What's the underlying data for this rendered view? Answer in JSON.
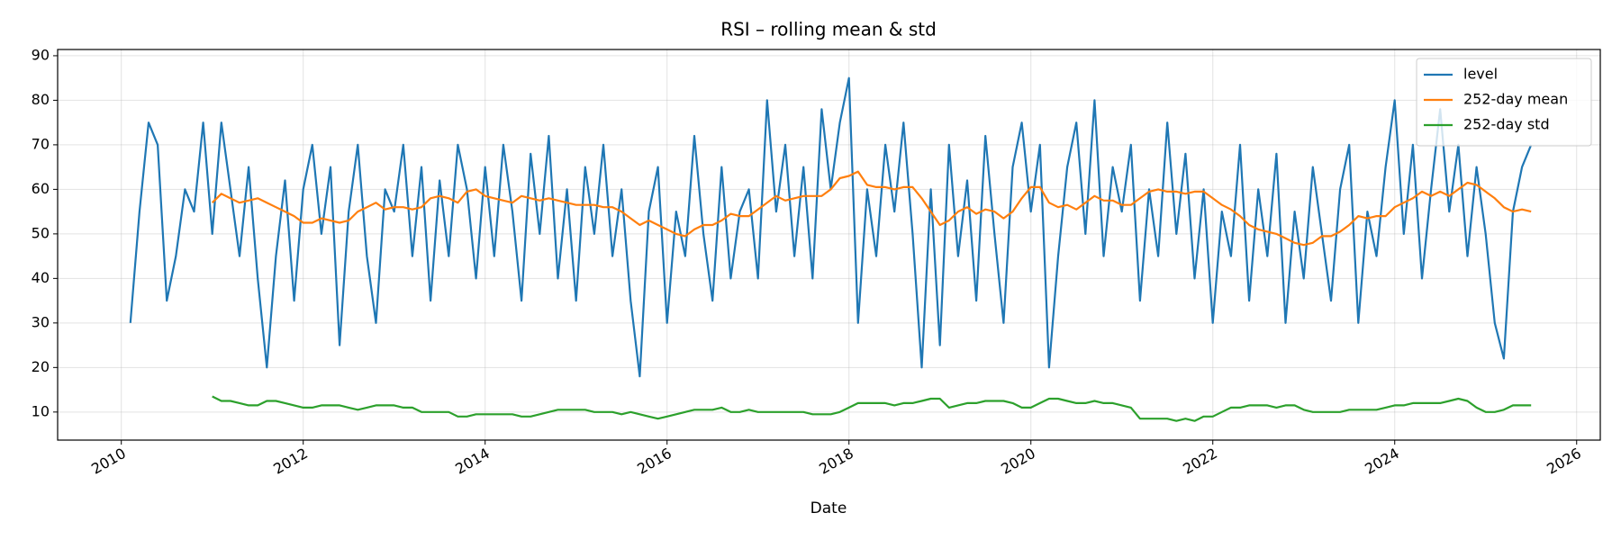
{
  "chart_data": {
    "type": "line",
    "title": "RSI – rolling mean & std",
    "x_label": "Date",
    "xlim": [
      2009.3,
      2026.26
    ],
    "xticks": [
      2010,
      2012,
      2014,
      2016,
      2018,
      2020,
      2022,
      2024,
      2026
    ],
    "ylim": [
      3.7,
      91.4
    ],
    "yticks": [
      10,
      20,
      30,
      40,
      50,
      60,
      70,
      80,
      90
    ],
    "grid": true,
    "legend": "upper right",
    "x": [
      2010.1,
      2010.2,
      2010.3,
      2010.4,
      2010.5,
      2010.6,
      2010.7,
      2010.8,
      2010.9,
      2011.0,
      2011.1,
      2011.2,
      2011.3,
      2011.4,
      2011.5,
      2011.6,
      2011.7,
      2011.8,
      2011.9,
      2012.0,
      2012.1,
      2012.2,
      2012.3,
      2012.4,
      2012.5,
      2012.6,
      2012.7,
      2012.8,
      2012.9,
      2013.0,
      2013.1,
      2013.2,
      2013.3,
      2013.4,
      2013.5,
      2013.6,
      2013.7,
      2013.8,
      2013.9,
      2014.0,
      2014.1,
      2014.2,
      2014.3,
      2014.4,
      2014.5,
      2014.6,
      2014.7,
      2014.8,
      2014.9,
      2015.0,
      2015.1,
      2015.2,
      2015.3,
      2015.4,
      2015.5,
      2015.6,
      2015.7,
      2015.8,
      2015.9,
      2016.0,
      2016.1,
      2016.2,
      2016.3,
      2016.4,
      2016.5,
      2016.6,
      2016.7,
      2016.8,
      2016.9,
      2017.0,
      2017.1,
      2017.2,
      2017.3,
      2017.4,
      2017.5,
      2017.6,
      2017.7,
      2017.8,
      2017.9,
      2018.0,
      2018.1,
      2018.2,
      2018.3,
      2018.4,
      2018.5,
      2018.6,
      2018.7,
      2018.8,
      2018.9,
      2019.0,
      2019.1,
      2019.2,
      2019.3,
      2019.4,
      2019.5,
      2019.6,
      2019.7,
      2019.8,
      2019.9,
      2020.0,
      2020.1,
      2020.2,
      2020.3,
      2020.4,
      2020.5,
      2020.6,
      2020.7,
      2020.8,
      2020.9,
      2021.0,
      2021.1,
      2021.2,
      2021.3,
      2021.4,
      2021.5,
      2021.6,
      2021.7,
      2021.8,
      2021.9,
      2022.0,
      2022.1,
      2022.2,
      2022.3,
      2022.4,
      2022.5,
      2022.6,
      2022.7,
      2022.8,
      2022.9,
      2023.0,
      2023.1,
      2023.2,
      2023.3,
      2023.4,
      2023.5,
      2023.6,
      2023.7,
      2023.8,
      2023.9,
      2024.0,
      2024.1,
      2024.2,
      2024.3,
      2024.4,
      2024.5,
      2024.6,
      2024.7,
      2024.8,
      2024.9,
      2025.0,
      2025.1,
      2025.2,
      2025.3,
      2025.4,
      2025.5
    ],
    "series": [
      {
        "name": "level",
        "color": "#1f77b4",
        "values": [
          30,
          55,
          75,
          70,
          35,
          45,
          60,
          55,
          75,
          50,
          75,
          60,
          45,
          65,
          40,
          20,
          45,
          62,
          35,
          60,
          70,
          50,
          65,
          25,
          55,
          70,
          45,
          30,
          60,
          55,
          70,
          45,
          65,
          35,
          62,
          45,
          70,
          60,
          40,
          65,
          45,
          70,
          55,
          35,
          68,
          50,
          72,
          40,
          60,
          35,
          65,
          50,
          70,
          45,
          60,
          35,
          18,
          55,
          65,
          30,
          55,
          45,
          72,
          50,
          35,
          65,
          40,
          55,
          60,
          40,
          80,
          55,
          70,
          45,
          65,
          40,
          78,
          60,
          75,
          85,
          30,
          60,
          45,
          70,
          55,
          75,
          50,
          20,
          60,
          25,
          70,
          45,
          62,
          35,
          72,
          50,
          30,
          65,
          75,
          55,
          70,
          20,
          45,
          65,
          75,
          50,
          80,
          45,
          65,
          55,
          70,
          35,
          60,
          45,
          75,
          50,
          68,
          40,
          60,
          30,
          55,
          45,
          70,
          35,
          60,
          45,
          68,
          30,
          55,
          40,
          65,
          50,
          35,
          60,
          70,
          30,
          55,
          45,
          65,
          80,
          50,
          70,
          40,
          60,
          78,
          55,
          70,
          45,
          65,
          50,
          30,
          22,
          55,
          65,
          70
        ]
      },
      {
        "name": "252-day mean",
        "color": "#ff7f0e",
        "values": [
          null,
          null,
          null,
          null,
          null,
          null,
          null,
          null,
          null,
          57,
          59,
          58,
          57,
          57.5,
          58,
          57,
          56,
          55,
          54,
          52.5,
          52.5,
          53.5,
          53,
          52.5,
          53,
          55,
          56,
          57,
          55.5,
          56,
          56,
          55.5,
          56,
          58,
          58.5,
          58,
          57,
          59.5,
          60,
          58.5,
          58,
          57.5,
          57,
          58.5,
          58,
          57.5,
          58,
          57.5,
          57,
          56.5,
          56.5,
          56.5,
          56,
          56,
          55,
          53.5,
          52,
          53,
          52,
          51,
          50,
          49.5,
          51,
          52,
          52,
          53,
          54.5,
          54,
          54,
          55.5,
          57,
          58.5,
          57.5,
          58,
          58.5,
          58.5,
          58.5,
          60,
          62.5,
          63,
          64,
          61,
          60.5,
          60.5,
          60,
          60.5,
          60.5,
          58,
          55,
          52,
          53,
          55,
          56,
          54.5,
          55.5,
          55,
          53.5,
          55,
          58,
          60.5,
          60.5,
          57,
          56,
          56.5,
          55.5,
          57,
          58.5,
          57.5,
          57.5,
          56.5,
          56.5,
          58,
          59.5,
          60,
          59.5,
          59.5,
          59,
          59.5,
          59.5,
          58,
          56.5,
          55.5,
          54,
          52,
          51,
          50.5,
          50,
          49,
          48,
          47.5,
          48,
          49.5,
          49.5,
          50.5,
          52,
          54,
          53.5,
          54,
          54,
          56,
          57,
          58,
          59.5,
          58.5,
          59.5,
          58.5,
          60,
          61.5,
          61,
          59.5,
          58,
          56,
          55,
          55.5,
          55
        ]
      },
      {
        "name": "252-day std",
        "color": "#2ca02c",
        "values": [
          null,
          null,
          null,
          null,
          null,
          null,
          null,
          null,
          null,
          13.5,
          12.5,
          12.5,
          12,
          11.5,
          11.5,
          12.5,
          12.5,
          12,
          11.5,
          11,
          11,
          11.5,
          11.5,
          11.5,
          11,
          10.5,
          11,
          11.5,
          11.5,
          11.5,
          11,
          11,
          10,
          10,
          10,
          10,
          9,
          9,
          9.5,
          9.5,
          9.5,
          9.5,
          9.5,
          9,
          9,
          9.5,
          10,
          10.5,
          10.5,
          10.5,
          10.5,
          10,
          10,
          10,
          9.5,
          10,
          9.5,
          9,
          8.5,
          9,
          9.5,
          10,
          10.5,
          10.5,
          10.5,
          11,
          10,
          10,
          10.5,
          10,
          10,
          10,
          10,
          10,
          10,
          9.5,
          9.5,
          9.5,
          10,
          11,
          12,
          12,
          12,
          12,
          11.5,
          12,
          12,
          12.5,
          13,
          13,
          11,
          11.5,
          12,
          12,
          12.5,
          12.5,
          12.5,
          12,
          11,
          11,
          12,
          13,
          13,
          12.5,
          12,
          12,
          12.5,
          12,
          12,
          11.5,
          11,
          8.5,
          8.5,
          8.5,
          8.5,
          8,
          8.5,
          8,
          9,
          9,
          10,
          11,
          11,
          11.5,
          11.5,
          11.5,
          11,
          11.5,
          11.5,
          10.5,
          10,
          10,
          10,
          10,
          10.5,
          10.5,
          10.5,
          10.5,
          11,
          11.5,
          11.5,
          12,
          12,
          12,
          12,
          12.5,
          13,
          12.5,
          11,
          10,
          10,
          10.5,
          11.5,
          11.5,
          11.5
        ]
      }
    ]
  }
}
